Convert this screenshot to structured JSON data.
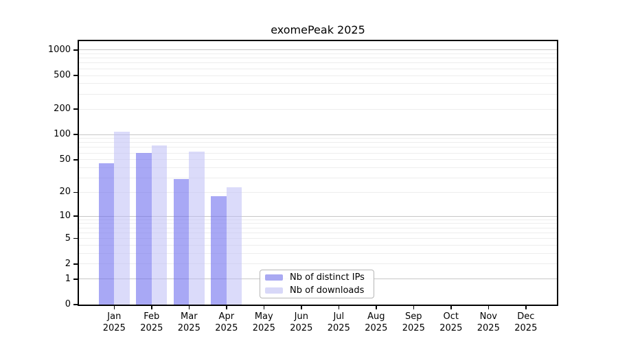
{
  "chart_data": {
    "type": "bar",
    "title": "exomePeak 2025",
    "categories": [
      {
        "month": "Jan",
        "year": "2025"
      },
      {
        "month": "Feb",
        "year": "2025"
      },
      {
        "month": "Mar",
        "year": "2025"
      },
      {
        "month": "Apr",
        "year": "2025"
      },
      {
        "month": "May",
        "year": "2025"
      },
      {
        "month": "Jun",
        "year": "2025"
      },
      {
        "month": "Jul",
        "year": "2025"
      },
      {
        "month": "Aug",
        "year": "2025"
      },
      {
        "month": "Sep",
        "year": "2025"
      },
      {
        "month": "Oct",
        "year": "2025"
      },
      {
        "month": "Nov",
        "year": "2025"
      },
      {
        "month": "Dec",
        "year": "2025"
      }
    ],
    "series": [
      {
        "name": "Nb of distinct IPs",
        "values": [
          45,
          60,
          29,
          18,
          null,
          null,
          null,
          null,
          null,
          null,
          null,
          null
        ],
        "legend_color": "#a9a9f2",
        "bar_color": "rgba(110,110,238,0.6)"
      },
      {
        "name": "Nb of downloads",
        "values": [
          108,
          74,
          63,
          23,
          null,
          null,
          null,
          null,
          null,
          null,
          null,
          null
        ],
        "legend_color": "#d8d8f8",
        "bar_color": "rgba(190,190,245,0.55)"
      }
    ],
    "yscale": "log1p",
    "yticks": [
      0,
      1,
      2,
      5,
      10,
      20,
      50,
      100,
      200,
      500,
      1000
    ],
    "ylim": [
      0,
      1270
    ],
    "xlabel": "",
    "ylabel": "",
    "grid": true,
    "legend_position": "lower center"
  },
  "colors": {
    "major_grid": "#c6c6c6",
    "minor_grid": "#ededed",
    "axis": "#000000",
    "legend_border": "#b5b5b5"
  }
}
